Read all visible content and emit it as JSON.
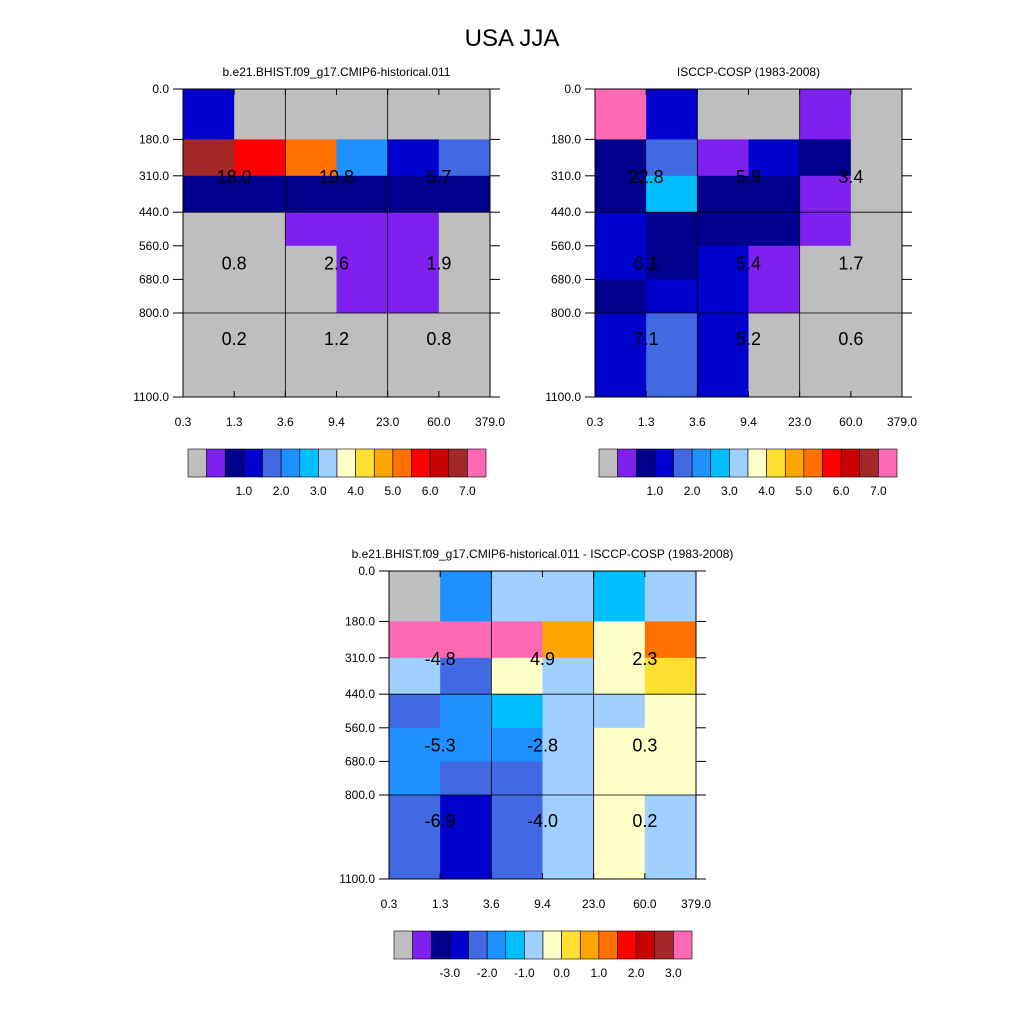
{
  "title": "USA JJA",
  "colors": {
    "gray": "#bebebe",
    "magenta": "#ff69b4",
    "purple": "#8020f0",
    "navy": "#00008c",
    "dark_blue": "#0000cd",
    "royal_blue": "#4169e1",
    "dodger_blue": "#1e90ff",
    "deep_sky_blue": "#00bfff",
    "light_blue": "#a0d0ff",
    "light_yellow": "#ffffc8",
    "yellow": "#ffe030",
    "orange": "#ffa500",
    "dark_orange": "#ff7000",
    "red": "#ff0000",
    "crimson": "#c80000",
    "brown": "#a52828"
  },
  "chart_data": [
    {
      "type": "heatmap",
      "title": "b.e21.BHIST.f09_g17.CMIP6-historical.011",
      "x_ticks": [
        "0.3",
        "1.3",
        "3.6",
        "9.4",
        "23.0",
        "60.0",
        "379.0"
      ],
      "y_ticks": [
        "0.0",
        "180.0",
        "310.0",
        "440.0",
        "560.0",
        "680.0",
        "800.0",
        "1100.0"
      ],
      "cell_colors": [
        [
          "dark_blue",
          "gray",
          "gray",
          "gray",
          "gray",
          "gray"
        ],
        [
          "brown",
          "red",
          "dark_orange",
          "dodger_blue",
          "dark_blue",
          "royal_blue"
        ],
        [
          "navy",
          "navy",
          "navy",
          "navy",
          "navy",
          "navy"
        ],
        [
          "gray",
          "gray",
          "purple",
          "purple",
          "purple",
          "gray"
        ],
        [
          "gray",
          "gray",
          "gray",
          "purple",
          "purple",
          "gray"
        ],
        [
          "gray",
          "gray",
          "gray",
          "purple",
          "purple",
          "gray"
        ],
        [
          "gray",
          "gray",
          "gray",
          "gray",
          "gray",
          "gray"
        ]
      ],
      "block_values": [
        [
          "18.0",
          "10.8",
          "5.7"
        ],
        [
          "0.8",
          "2.6",
          "1.9"
        ],
        [
          "0.2",
          "1.2",
          "0.8"
        ]
      ],
      "colorbar": {
        "colors": [
          "gray",
          "purple",
          "navy",
          "dark_blue",
          "royal_blue",
          "dodger_blue",
          "deep_sky_blue",
          "light_blue",
          "light_yellow",
          "yellow",
          "orange",
          "dark_orange",
          "red",
          "crimson",
          "brown",
          "magenta"
        ],
        "labels": [
          "1.0",
          "2.0",
          "3.0",
          "4.0",
          "5.0",
          "6.0",
          "7.0"
        ]
      }
    },
    {
      "type": "heatmap",
      "title": "ISCCP-COSP (1983-2008)",
      "x_ticks": [
        "0.3",
        "1.3",
        "3.6",
        "9.4",
        "23.0",
        "60.0",
        "379.0"
      ],
      "y_ticks": [
        "0.0",
        "180.0",
        "310.0",
        "440.0",
        "560.0",
        "680.0",
        "800.0",
        "1100.0"
      ],
      "cell_colors": [
        [
          "magenta",
          "dark_blue",
          "gray",
          "gray",
          "purple",
          "gray"
        ],
        [
          "navy",
          "royal_blue",
          "purple",
          "dark_blue",
          "navy",
          "gray"
        ],
        [
          "navy",
          "deep_sky_blue",
          "navy",
          "navy",
          "purple",
          "gray"
        ],
        [
          "dark_blue",
          "navy",
          "navy",
          "navy",
          "purple",
          "gray"
        ],
        [
          "dark_blue",
          "navy",
          "dark_blue",
          "purple",
          "gray",
          "gray"
        ],
        [
          "navy",
          "dark_blue",
          "dark_blue",
          "purple",
          "gray",
          "gray"
        ],
        [
          "dark_blue",
          "royal_blue",
          "dark_blue",
          "gray",
          "gray",
          "gray"
        ]
      ],
      "block_values": [
        [
          "22.8",
          "5.9",
          "3.4"
        ],
        [
          "6.1",
          "5.4",
          "1.7"
        ],
        [
          "7.1",
          "5.2",
          "0.6"
        ]
      ],
      "colorbar": {
        "colors": [
          "gray",
          "purple",
          "navy",
          "dark_blue",
          "royal_blue",
          "dodger_blue",
          "deep_sky_blue",
          "light_blue",
          "light_yellow",
          "yellow",
          "orange",
          "dark_orange",
          "red",
          "crimson",
          "brown",
          "magenta"
        ],
        "labels": [
          "1.0",
          "2.0",
          "3.0",
          "4.0",
          "5.0",
          "6.0",
          "7.0"
        ]
      }
    },
    {
      "type": "heatmap",
      "title": "b.e21.BHIST.f09_g17.CMIP6-historical.011 - ISCCP-COSP (1983-2008)",
      "x_ticks": [
        "0.3",
        "1.3",
        "3.6",
        "9.4",
        "23.0",
        "60.0",
        "379.0"
      ],
      "y_ticks": [
        "0.0",
        "180.0",
        "310.0",
        "440.0",
        "560.0",
        "680.0",
        "800.0",
        "1100.0"
      ],
      "cell_colors": [
        [
          "gray",
          "dodger_blue",
          "light_blue",
          "light_blue",
          "deep_sky_blue",
          "light_blue"
        ],
        [
          "magenta",
          "magenta",
          "magenta",
          "orange",
          "light_yellow",
          "dark_orange"
        ],
        [
          "light_blue",
          "royal_blue",
          "light_yellow",
          "light_blue",
          "light_yellow",
          "yellow"
        ],
        [
          "royal_blue",
          "dodger_blue",
          "deep_sky_blue",
          "light_blue",
          "light_blue",
          "light_yellow"
        ],
        [
          "dodger_blue",
          "dodger_blue",
          "dodger_blue",
          "light_blue",
          "light_yellow",
          "light_yellow"
        ],
        [
          "dodger_blue",
          "royal_blue",
          "royal_blue",
          "light_blue",
          "light_yellow",
          "light_yellow"
        ],
        [
          "royal_blue",
          "dark_blue",
          "royal_blue",
          "light_blue",
          "light_yellow",
          "light_blue"
        ]
      ],
      "block_values": [
        [
          "-4.8",
          "4.9",
          "2.3"
        ],
        [
          "-5.3",
          "-2.8",
          "0.3"
        ],
        [
          "-6.9",
          "-4.0",
          "0.2"
        ]
      ],
      "colorbar": {
        "colors": [
          "gray",
          "purple",
          "navy",
          "dark_blue",
          "royal_blue",
          "dodger_blue",
          "deep_sky_blue",
          "light_blue",
          "light_yellow",
          "yellow",
          "orange",
          "dark_orange",
          "red",
          "crimson",
          "brown",
          "magenta"
        ],
        "labels": [
          "-3.0",
          "-2.0",
          "-1.0",
          "0.0",
          "1.0",
          "2.0",
          "3.0"
        ]
      }
    }
  ]
}
